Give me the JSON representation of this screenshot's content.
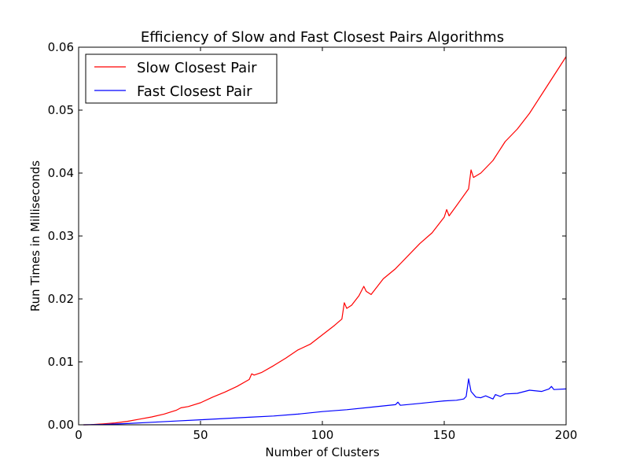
{
  "chart_data": {
    "type": "line",
    "title": "Efficiency of Slow and Fast Closest Pairs Algorithms",
    "xlabel": "Number of Clusters",
    "ylabel": "Run Times in Milliseconds",
    "xlim": [
      0,
      200
    ],
    "ylim": [
      0,
      0.06
    ],
    "xticks": [
      0,
      50,
      100,
      150,
      200
    ],
    "xtick_labels": [
      "0",
      "50",
      "100",
      "150",
      "200"
    ],
    "yticks": [
      0,
      0.01,
      0.02,
      0.03,
      0.04,
      0.05,
      0.06
    ],
    "ytick_labels": [
      "0.00",
      "0.01",
      "0.02",
      "0.03",
      "0.04",
      "0.05",
      "0.06"
    ],
    "grid": false,
    "legend_position": "top-left",
    "series": [
      {
        "name": "Slow Closest Pair",
        "color": "#ff0000",
        "x": [
          2,
          5,
          10,
          15,
          20,
          25,
          30,
          35,
          40,
          42,
          45,
          50,
          55,
          60,
          65,
          70,
          71,
          72,
          75,
          80,
          85,
          90,
          95,
          100,
          105,
          108,
          109,
          110,
          112,
          115,
          117,
          118,
          120,
          125,
          130,
          135,
          140,
          145,
          150,
          151,
          152,
          155,
          160,
          161,
          162,
          165,
          170,
          175,
          180,
          185,
          190,
          195,
          200
        ],
        "values": [
          0.0,
          2e-05,
          0.00015,
          0.0003,
          0.00055,
          0.0009,
          0.00125,
          0.0017,
          0.0023,
          0.0027,
          0.0029,
          0.0035,
          0.0044,
          0.0052,
          0.0061,
          0.0072,
          0.0081,
          0.0079,
          0.0083,
          0.0094,
          0.0106,
          0.0119,
          0.0128,
          0.0143,
          0.0158,
          0.0168,
          0.0194,
          0.0185,
          0.019,
          0.0205,
          0.022,
          0.0212,
          0.0207,
          0.0232,
          0.0248,
          0.0268,
          0.0288,
          0.0305,
          0.033,
          0.0342,
          0.0332,
          0.0348,
          0.0375,
          0.0405,
          0.0393,
          0.04,
          0.042,
          0.045,
          0.047,
          0.0495,
          0.0525,
          0.0555,
          0.0585
        ]
      },
      {
        "name": "Fast Closest Pair",
        "color": "#0000ff",
        "x": [
          2,
          10,
          20,
          30,
          40,
          50,
          60,
          70,
          80,
          90,
          100,
          110,
          120,
          130,
          131,
          132,
          140,
          145,
          150,
          155,
          158,
          159,
          160,
          161,
          163,
          165,
          167,
          170,
          171,
          173,
          175,
          180,
          185,
          190,
          193,
          194,
          195,
          200
        ],
        "values": [
          0.0,
          5e-05,
          0.0002,
          0.0004,
          0.0006,
          0.0008,
          0.001,
          0.0012,
          0.0014,
          0.0017,
          0.0021,
          0.0024,
          0.0028,
          0.0032,
          0.0036,
          0.0031,
          0.0034,
          0.0036,
          0.0038,
          0.0039,
          0.0041,
          0.0045,
          0.0073,
          0.0053,
          0.0044,
          0.0043,
          0.0046,
          0.0041,
          0.0048,
          0.0045,
          0.0049,
          0.005,
          0.0055,
          0.0053,
          0.0057,
          0.0061,
          0.0056,
          0.0057
        ]
      }
    ]
  }
}
